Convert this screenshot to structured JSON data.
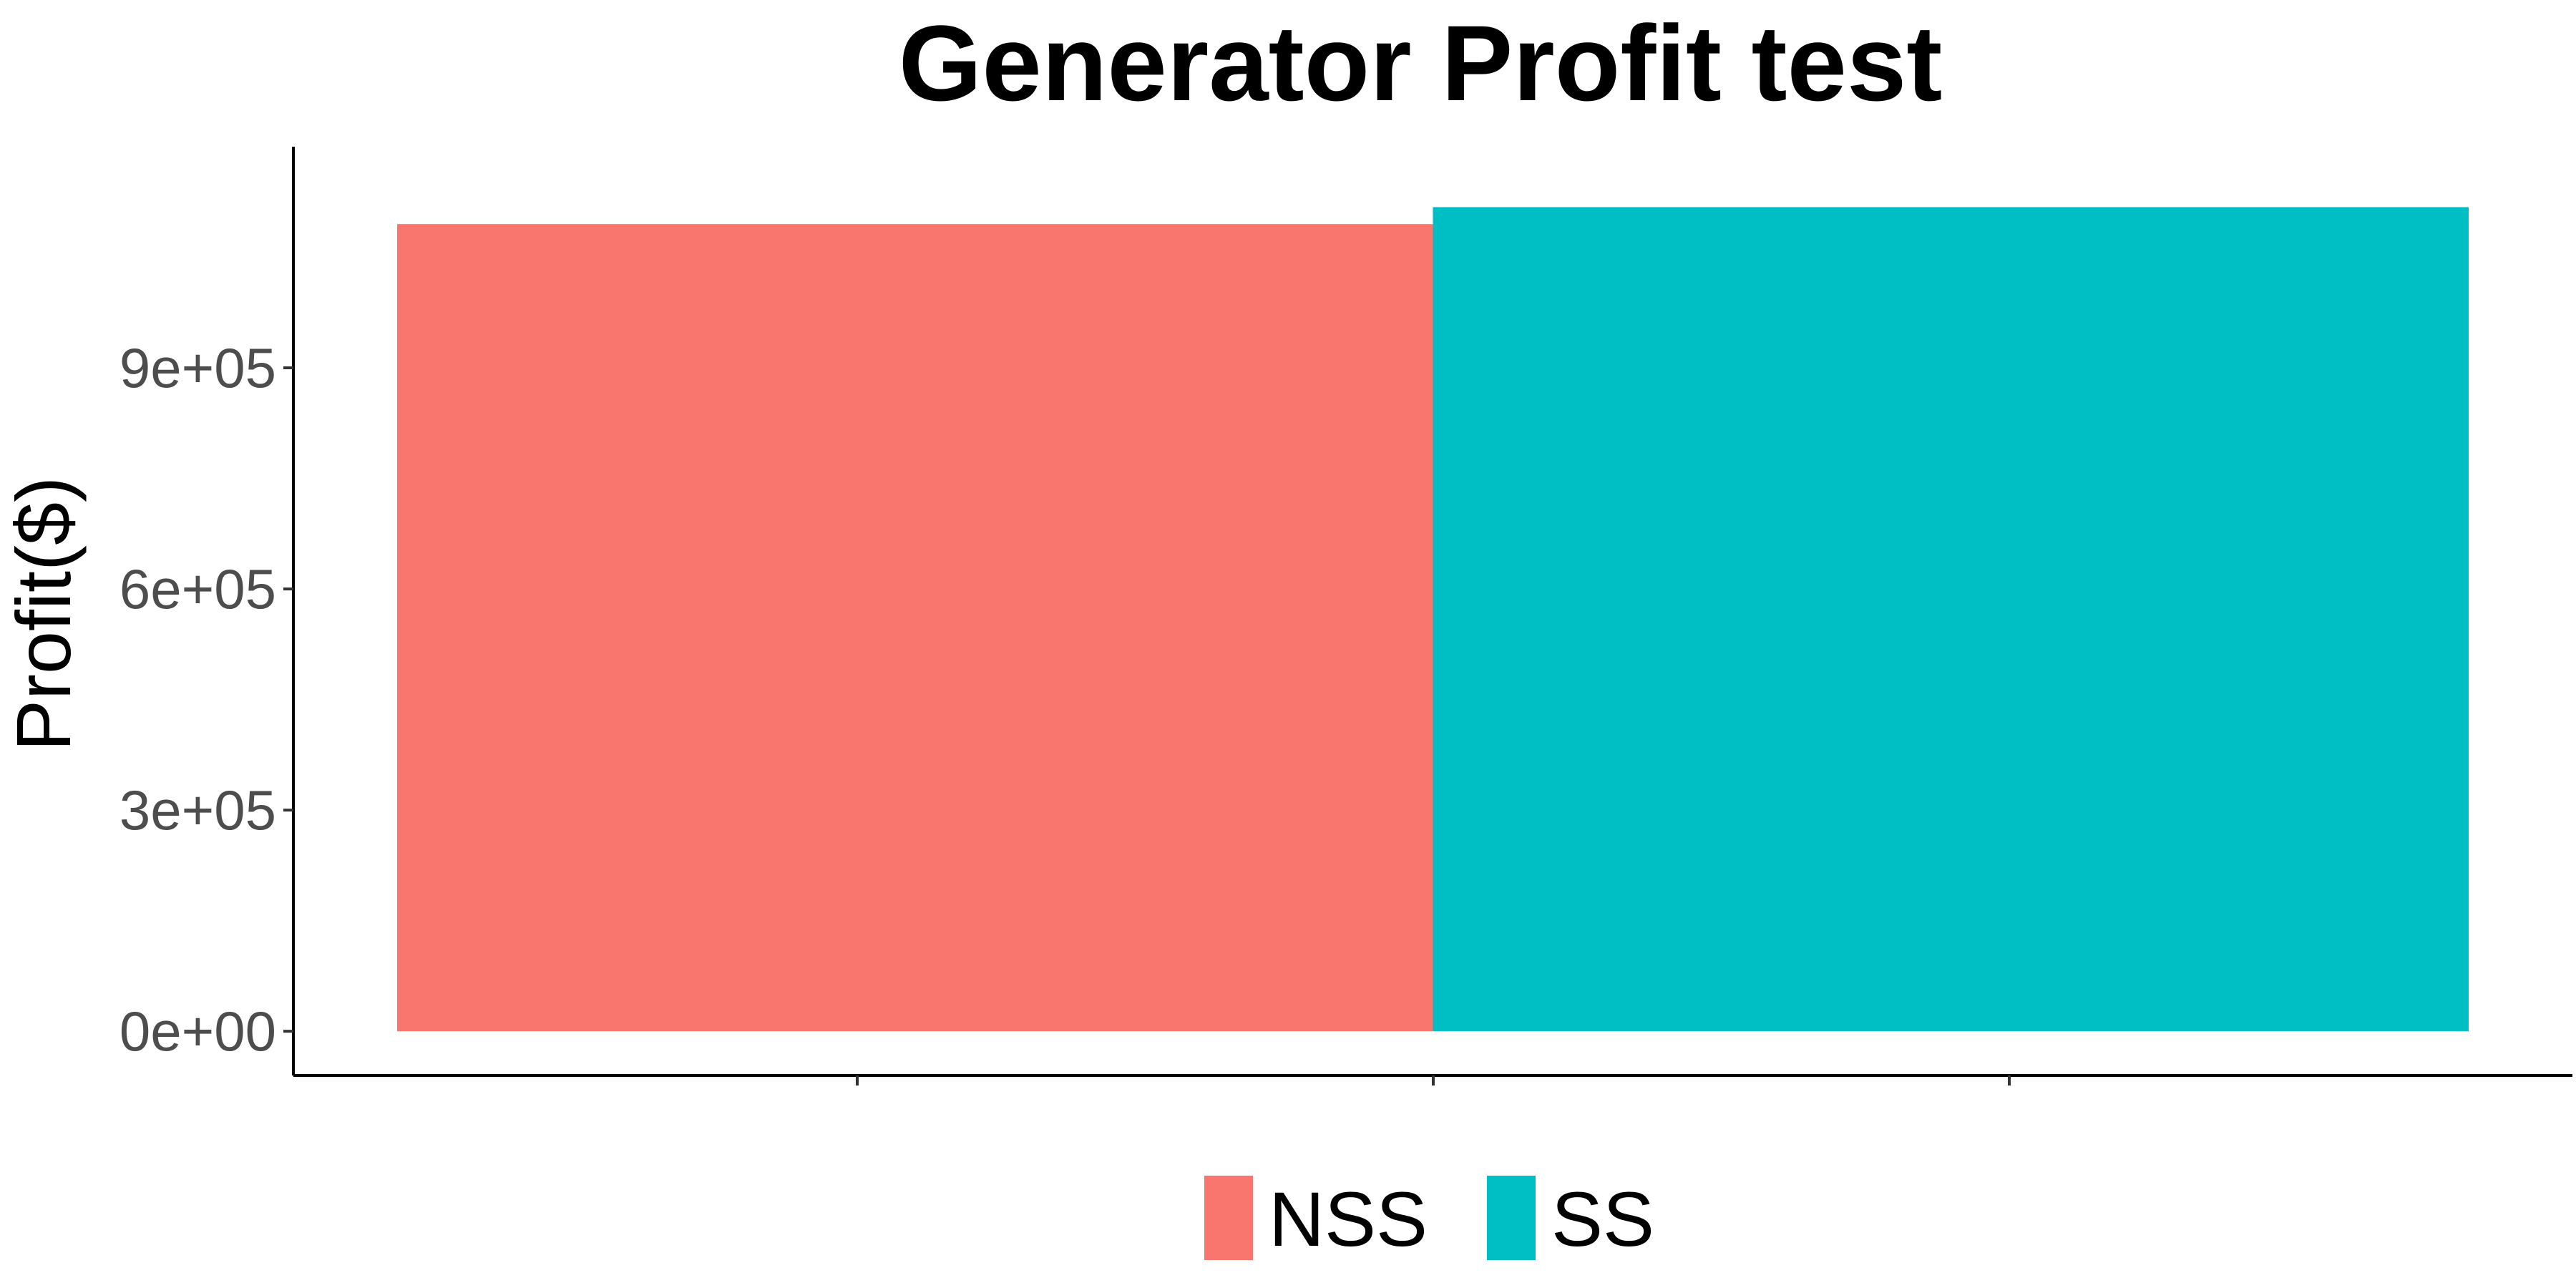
{
  "chart_data": {
    "type": "bar",
    "title": "Generator Profit  test",
    "xlabel": "",
    "ylabel": "Profit($)",
    "ylim": [
      -60000,
      1200000
    ],
    "yticks": [
      0,
      300000,
      600000,
      900000
    ],
    "ytick_labels": [
      "0e+00",
      "3e+05",
      "6e+05",
      "9e+05"
    ],
    "categories": [
      "NSS",
      "SS"
    ],
    "values": [
      1095000,
      1118000
    ],
    "colors": [
      "#F8766D",
      "#00BFC4"
    ],
    "grid": false,
    "legend": {
      "placement": "bottom",
      "entries": [
        {
          "label": "NSS",
          "color": "#F8766D"
        },
        {
          "label": "SS",
          "color": "#00BFC4"
        }
      ]
    }
  }
}
